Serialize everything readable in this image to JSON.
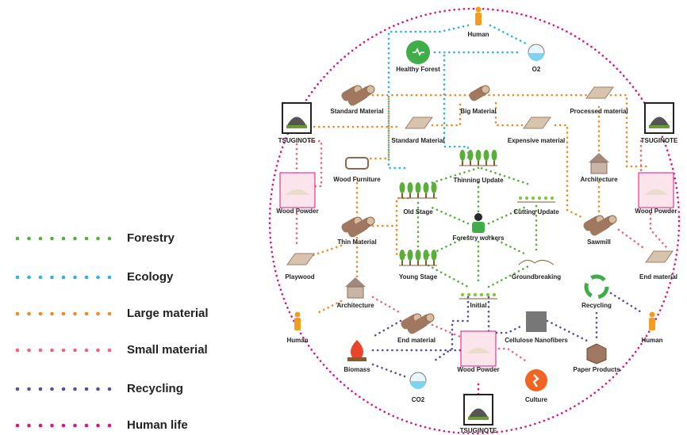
{
  "legend": [
    {
      "label": "Forestry",
      "color": "#5aae3a"
    },
    {
      "label": "Ecology",
      "color": "#2bb5e0"
    },
    {
      "label": "Large material",
      "color": "#f08a24"
    },
    {
      "label": "Small material",
      "color": "#f0667a"
    },
    {
      "label": "Recycling",
      "color": "#5c4ca0"
    },
    {
      "label": "Human life",
      "color": "#e0127e"
    }
  ],
  "nodes": [
    {
      "label": "Human"
    },
    {
      "label": "Healthy Forest"
    },
    {
      "label": "O2"
    },
    {
      "label": "Standard Material"
    },
    {
      "label": "Big Material"
    },
    {
      "label": "Processed material"
    },
    {
      "label": "TSUGINOTE"
    },
    {
      "label": "TSUGINOTE"
    },
    {
      "label": "Standard Material"
    },
    {
      "label": "Expensive material"
    },
    {
      "label": "Thinning Update"
    },
    {
      "label": "Wood Furniture"
    },
    {
      "label": "Architecture"
    },
    {
      "label": "Wood Powder"
    },
    {
      "label": "Wood Powder"
    },
    {
      "label": "Old Stage"
    },
    {
      "label": "Cutting Update"
    },
    {
      "label": "Forestry workers"
    },
    {
      "label": "Thin Material"
    },
    {
      "label": "Sawmill"
    },
    {
      "label": "Playwood"
    },
    {
      "label": "Young Stage"
    },
    {
      "label": "Groundbreaking"
    },
    {
      "label": "End material"
    },
    {
      "label": "Architecture"
    },
    {
      "label": "Initial"
    },
    {
      "label": "Recycling"
    },
    {
      "label": "Human"
    },
    {
      "label": "End material"
    },
    {
      "label": "Cellulose Nanofibers"
    },
    {
      "label": "Human"
    },
    {
      "label": "Biomass"
    },
    {
      "label": "Wood Powder"
    },
    {
      "label": "Paper Products"
    },
    {
      "label": "CO2"
    },
    {
      "label": "Culture"
    },
    {
      "label": "TSUGINOTE"
    }
  ]
}
